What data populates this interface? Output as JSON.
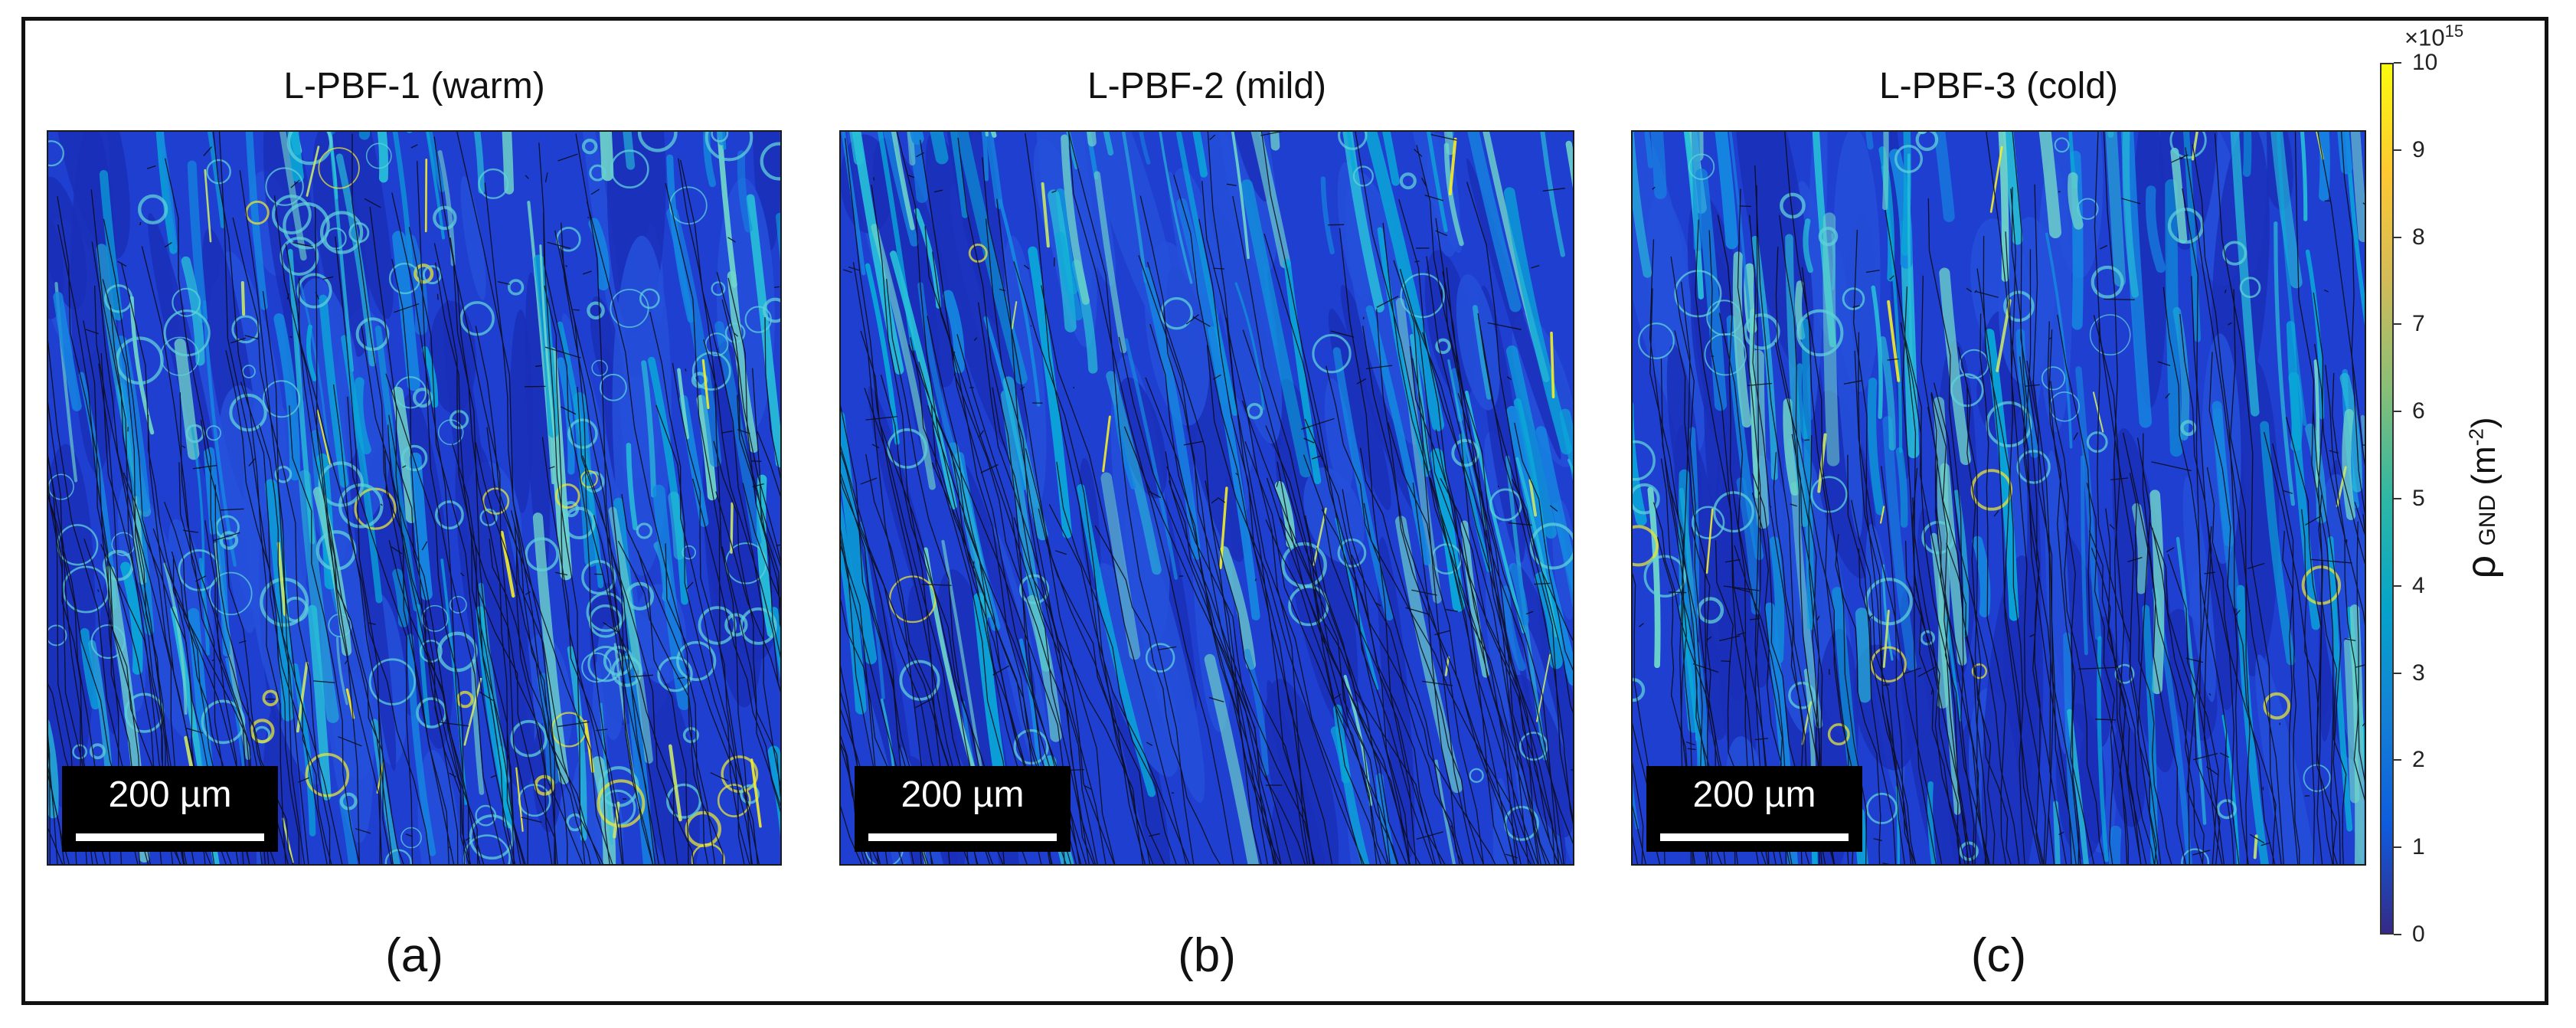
{
  "panels": [
    {
      "title": "L-PBF-1 (warm)",
      "caption": "(a)",
      "scalebar": "200 µm",
      "seed": 11,
      "cells": 0.65,
      "tilt": -0.12
    },
    {
      "title": "L-PBF-2 (mild)",
      "caption": "(b)",
      "scalebar": "200 µm",
      "seed": 27,
      "cells": 0.12,
      "tilt": -0.18
    },
    {
      "title": "L-PBF-3 (cold)",
      "caption": "(c)",
      "scalebar": "200 µm",
      "seed": 43,
      "cells": 0.25,
      "tilt": -0.07
    }
  ],
  "colorbar": {
    "exponent_prefix": "×10",
    "exponent_power": "15",
    "ticks": [
      "0",
      "1",
      "2",
      "3",
      "4",
      "5",
      "6",
      "7",
      "8",
      "9",
      "10"
    ],
    "label_symbol": "ρ",
    "label_sub": "GND",
    "label_unit_open": "(m",
    "label_unit_sup": "-2",
    "label_unit_close": ")",
    "colors": [
      "#352A87",
      "#0F5CDD",
      "#1481D6",
      "#06A4CA",
      "#2EB7A4",
      "#87BF77",
      "#D1BB59",
      "#FEC832",
      "#F9FB0E"
    ]
  }
}
